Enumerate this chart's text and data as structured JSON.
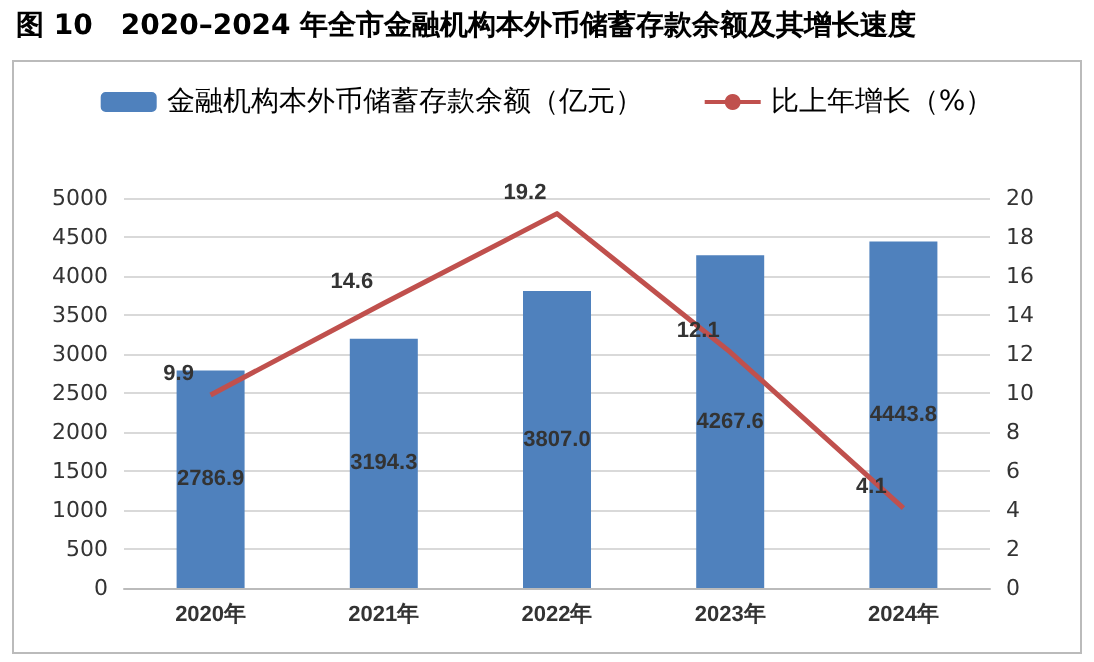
{
  "chart_data": {
    "type": "bar",
    "title": "图 10　2020–2024 年全市金融机构本外币储蓄存款余额及其增长速度",
    "categories": [
      "2020年",
      "2021年",
      "2022年",
      "2023年",
      "2024年"
    ],
    "series": [
      {
        "name": "金融机构本外币储蓄存款余额（亿元）",
        "color": "#4f81bd",
        "values": [
          2786.9,
          3194.3,
          3807.0,
          4267.6,
          4443.8
        ],
        "value_labels": [
          "2786.9",
          "3194.3",
          "3807.0",
          "4267.6",
          "4443.8"
        ]
      },
      {
        "name": "比上年增长（%）",
        "type": "line",
        "axis": "y2",
        "color": "#c0504d",
        "values": [
          9.9,
          14.6,
          19.2,
          12.1,
          4.1
        ],
        "value_labels": [
          "9.9",
          "14.6",
          "19.2",
          "12.1",
          "4.1"
        ]
      }
    ],
    "ylim": [
      0,
      5000
    ],
    "yticks": [
      0,
      500,
      1000,
      1500,
      2000,
      2500,
      3000,
      3500,
      4000,
      4500,
      5000
    ],
    "y2lim": [
      0,
      20
    ],
    "y2ticks": [
      0,
      2,
      4,
      6,
      8,
      10,
      12,
      14,
      16,
      18,
      20
    ],
    "grid": "y",
    "legend": "top",
    "marker": "none",
    "line_style": "solid"
  }
}
